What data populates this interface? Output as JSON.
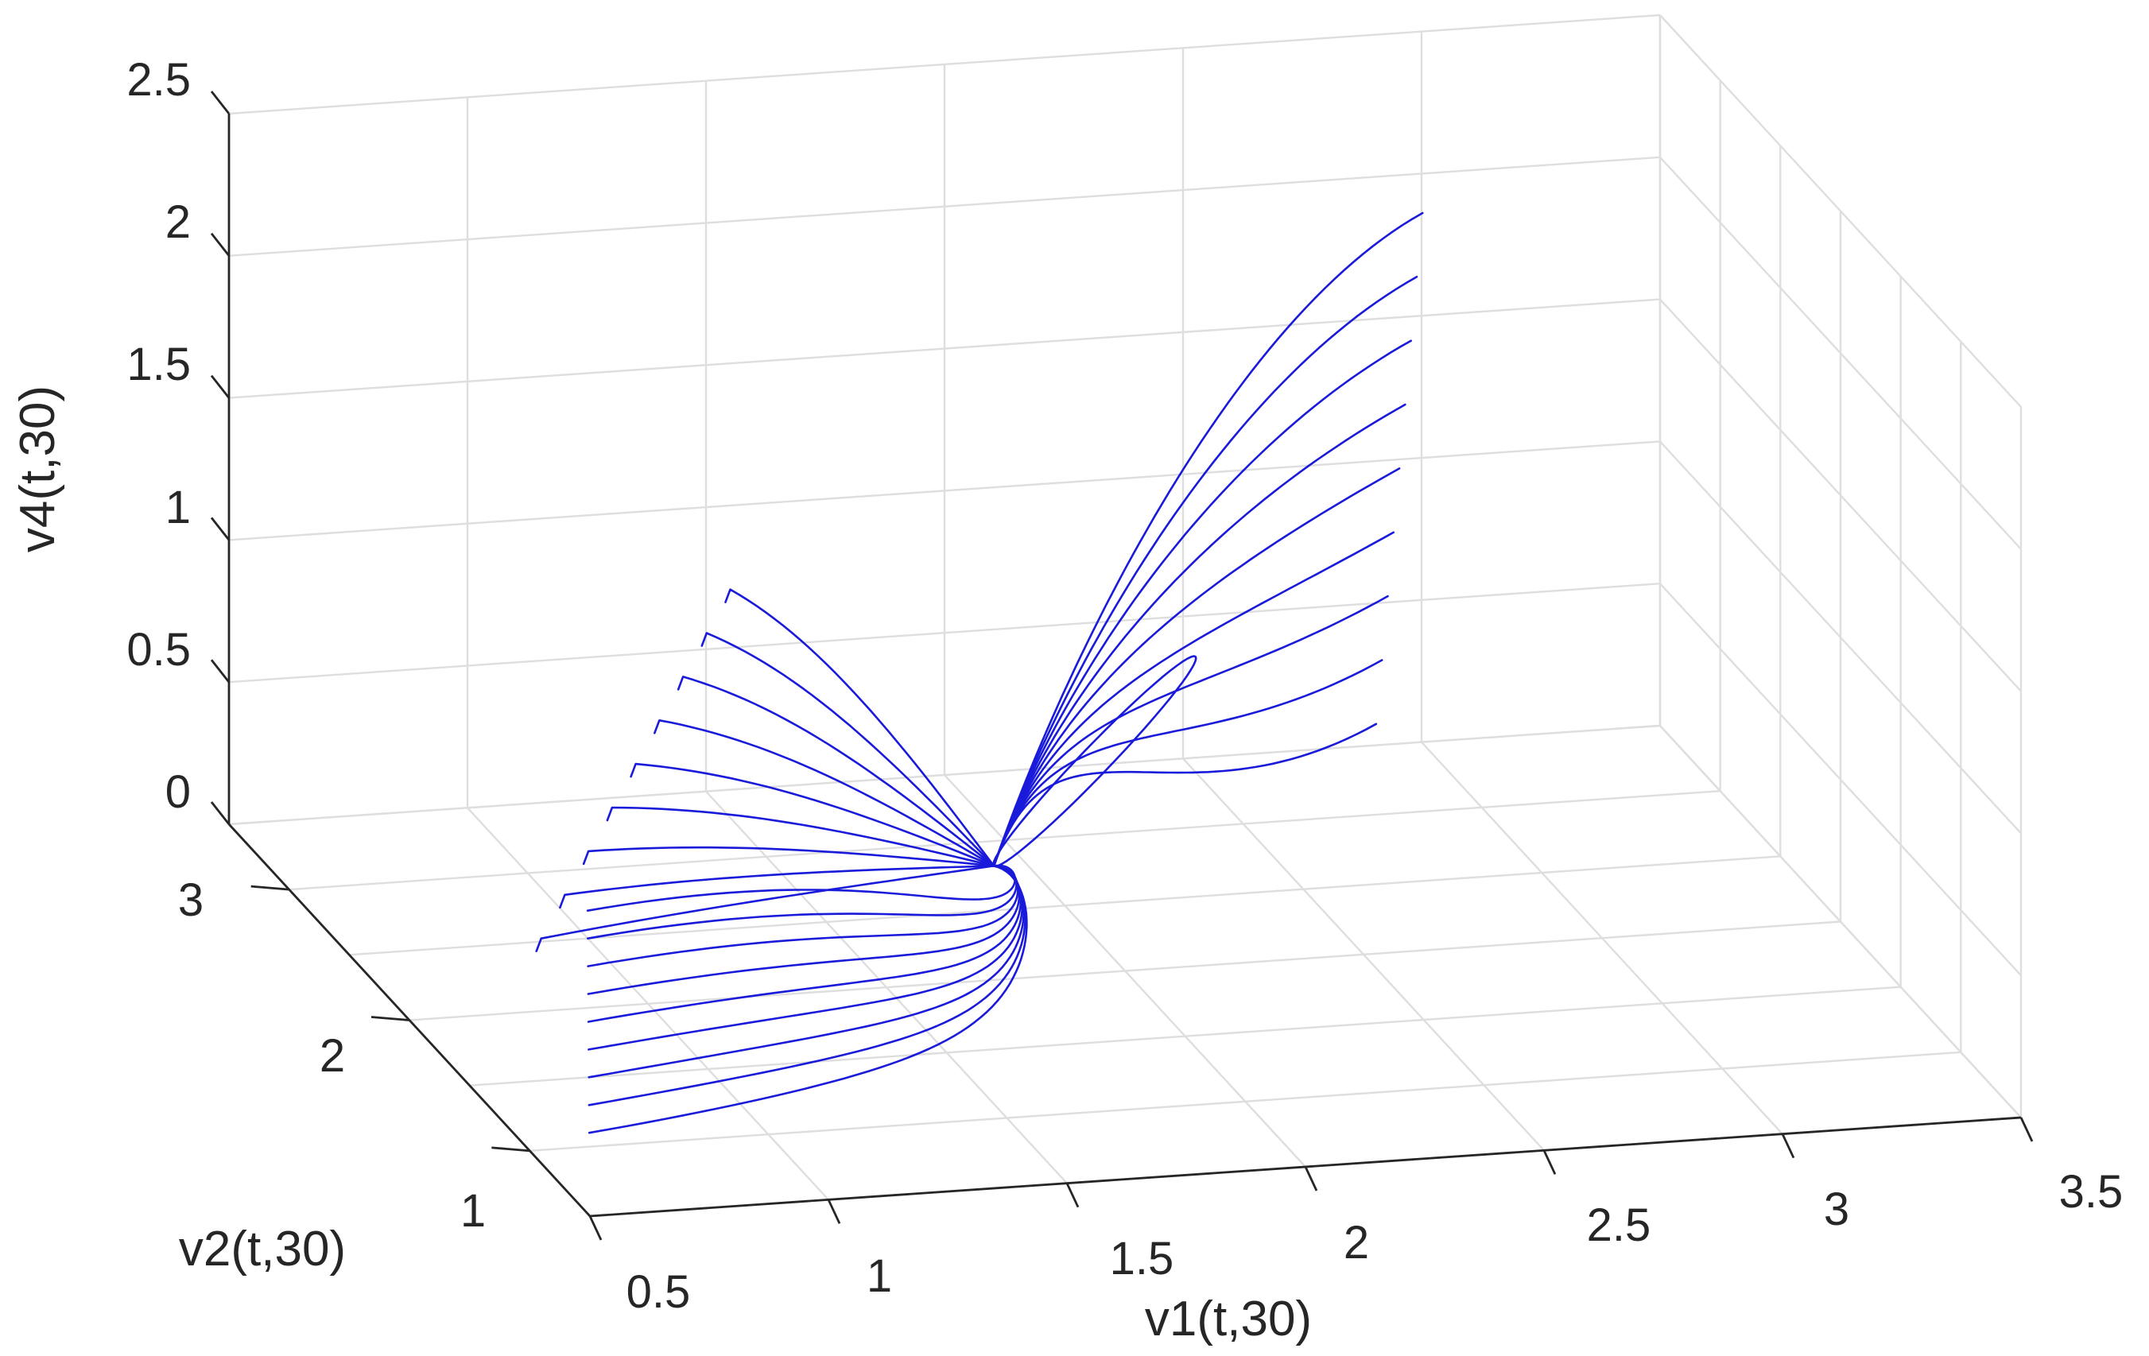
{
  "chart_data": {
    "type": "line3d",
    "xlabel": "v1(t,30)",
    "ylabel": "v2(t,30)",
    "zlabel": "v4(t,30)",
    "xlim": [
      0.5,
      3.5
    ],
    "ylim": [
      0.5,
      3.5
    ],
    "zlim": [
      0,
      2.5
    ],
    "x_ticks": [
      "0.5",
      "1",
      "1.5",
      "2",
      "2.5",
      "3",
      "3.5"
    ],
    "y_ticks": [
      "1",
      "2",
      "3"
    ],
    "z_ticks": [
      "0",
      "0.5",
      "1",
      "1.5",
      "2",
      "2.5"
    ],
    "grid": true,
    "line_color": "#1a1adb",
    "series_count": 9,
    "equilibrium_point": {
      "x": 1.7,
      "y": 1.9,
      "z": 0.45
    },
    "series": [
      {
        "start": {
          "x": 0.65,
          "y": 1.1,
          "z": 0.0
        },
        "end": {
          "x": 2.75,
          "y": 2.5,
          "z": 2.35
        },
        "hook": {
          "x": 1.45,
          "y": 3.1,
          "z": 0.9
        },
        "loop": {
          "x": 2.4,
          "y": 3.0,
          "z": 0.6
        }
      },
      {
        "start": {
          "x": 0.7,
          "y": 1.3,
          "z": 0.0
        },
        "end": {
          "x": 2.7,
          "y": 2.35,
          "z": 2.2
        },
        "hook": {
          "x": 1.35,
          "y": 2.9,
          "z": 0.85
        }
      },
      {
        "start": {
          "x": 0.75,
          "y": 1.5,
          "z": 0.0
        },
        "end": {
          "x": 2.65,
          "y": 2.2,
          "z": 2.05
        },
        "hook": {
          "x": 1.25,
          "y": 2.7,
          "z": 0.8
        }
      },
      {
        "start": {
          "x": 0.8,
          "y": 1.7,
          "z": 0.0
        },
        "end": {
          "x": 2.6,
          "y": 2.05,
          "z": 1.9
        },
        "hook": {
          "x": 1.15,
          "y": 2.5,
          "z": 0.75
        }
      },
      {
        "start": {
          "x": 0.85,
          "y": 1.9,
          "z": 0.0
        },
        "end": {
          "x": 2.55,
          "y": 1.9,
          "z": 1.75
        },
        "hook": {
          "x": 1.05,
          "y": 2.3,
          "z": 0.7
        }
      },
      {
        "start": {
          "x": 0.9,
          "y": 2.1,
          "z": 0.0
        },
        "end": {
          "x": 2.5,
          "y": 1.75,
          "z": 1.6
        },
        "hook": {
          "x": 0.95,
          "y": 2.1,
          "z": 0.65
        }
      },
      {
        "start": {
          "x": 0.95,
          "y": 2.3,
          "z": 0.0
        },
        "end": {
          "x": 2.45,
          "y": 1.6,
          "z": 1.45
        },
        "hook": {
          "x": 0.85,
          "y": 1.9,
          "z": 0.6
        }
      },
      {
        "start": {
          "x": 1.0,
          "y": 2.5,
          "z": 0.0
        },
        "end": {
          "x": 2.4,
          "y": 1.45,
          "z": 1.3
        },
        "hook": {
          "x": 0.75,
          "y": 1.7,
          "z": 0.55
        }
      },
      {
        "start": {
          "x": 1.05,
          "y": 2.7,
          "z": 0.0
        },
        "end": {
          "x": 2.35,
          "y": 1.3,
          "z": 1.15
        },
        "hook": {
          "x": 0.65,
          "y": 1.5,
          "z": 0.5
        }
      }
    ]
  }
}
